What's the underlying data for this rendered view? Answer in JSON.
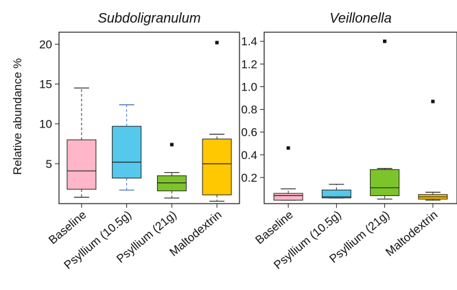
{
  "figure": {
    "ylabel": "Relative abundance %"
  },
  "chart_data": [
    {
      "type": "box",
      "title": "Subdoligranulum",
      "ylabel": "Relative abundance %",
      "categories": [
        "Baseline",
        "Psyllium (10.5g)",
        "Psyllium (21g)",
        "Maltodextrin"
      ],
      "yticks": [
        5,
        10,
        15,
        20
      ],
      "ylim": [
        0,
        21.5
      ],
      "grid": false,
      "boxes": [
        {
          "category": "Baseline",
          "color": "#FFB6C8",
          "whisker_color": "#333333",
          "whisker_low": 0.8,
          "q1": 1.8,
          "median": 4.1,
          "q3": 8.0,
          "whisker_high": 14.5,
          "outliers": []
        },
        {
          "category": "Psyllium (10.5g)",
          "color": "#55C8EC",
          "whisker_color": "#4A6FC0",
          "whisker_low": 1.7,
          "q1": 3.2,
          "median": 5.2,
          "q3": 9.7,
          "whisker_high": 12.4,
          "outliers": []
        },
        {
          "category": "Psyllium (21g)",
          "color": "#7DC42A",
          "whisker_color": "#333333",
          "whisker_low": 0.7,
          "q1": 1.6,
          "median": 2.6,
          "q3": 3.5,
          "whisker_high": 3.9,
          "outliers": [
            7.4
          ]
        },
        {
          "category": "Maltodextrin",
          "color": "#FFC800",
          "whisker_color": "#333333",
          "whisker_low": 0.3,
          "q1": 1.1,
          "median": 5.0,
          "q3": 8.1,
          "whisker_high": 8.7,
          "outliers": [
            20.2
          ]
        }
      ]
    },
    {
      "type": "box",
      "title": "Veillonella",
      "categories": [
        "Baseline",
        "Psyllium (10.5g)",
        "Psyllium (21g)",
        "Maltodextrin"
      ],
      "yticks": [
        0.2,
        0.4,
        0.6,
        0.8,
        1.0,
        1.2,
        1.4
      ],
      "ylim": [
        -0.03,
        1.48
      ],
      "grid": false,
      "boxes": [
        {
          "category": "Baseline",
          "color": "#FFB6C8",
          "whisker_color": "#333333",
          "whisker_low": 0.0,
          "q1": 0.0,
          "median": 0.04,
          "q3": 0.06,
          "whisker_high": 0.1,
          "outliers": [
            0.46
          ]
        },
        {
          "category": "Psyllium (10.5g)",
          "color": "#55C8EC",
          "whisker_color": "#333333",
          "whisker_low": 0.02,
          "q1": 0.02,
          "median": 0.03,
          "q3": 0.09,
          "whisker_high": 0.14,
          "outliers": []
        },
        {
          "category": "Psyllium (21g)",
          "color": "#7DC42A",
          "whisker_color": "#333333",
          "whisker_low": 0.01,
          "q1": 0.04,
          "median": 0.11,
          "q3": 0.27,
          "whisker_high": 0.28,
          "outliers": [
            1.4
          ]
        },
        {
          "category": "Maltodextrin",
          "color": "#FFC800",
          "whisker_color": "#333333",
          "whisker_low": 0.0,
          "q1": 0.01,
          "median": 0.03,
          "q3": 0.05,
          "whisker_high": 0.07,
          "outliers": [
            0.87
          ]
        }
      ]
    }
  ]
}
